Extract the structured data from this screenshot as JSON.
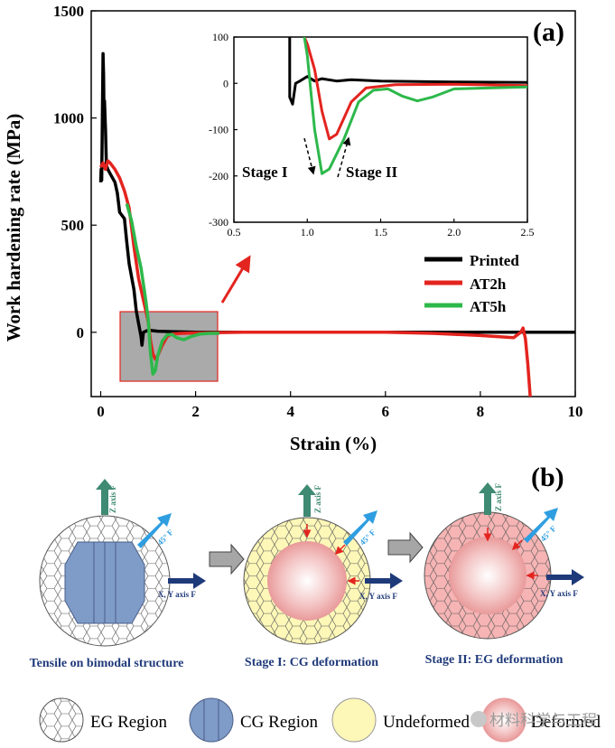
{
  "figure": {
    "panel_a_label": "(a)",
    "panel_b_label": "(b)",
    "watermark": "材料科学与工程"
  },
  "chart_data": [
    {
      "type": "line",
      "name": "main",
      "title": "",
      "xlabel": "Strain (%)",
      "ylabel": "Work hardening rate (MPa)",
      "xlim": [
        -0.2,
        10
      ],
      "ylim": [
        -300,
        1500
      ],
      "xticks": [
        0,
        2,
        4,
        6,
        8,
        10
      ],
      "yticks": [
        0,
        500,
        1000,
        1500
      ],
      "legend": {
        "position": "right-middle",
        "entries": [
          "Printed",
          "AT2h",
          "AT5h"
        ]
      },
      "series": [
        {
          "name": "Printed",
          "color": "#000000",
          "points": [
            [
              0.0,
              700
            ],
            [
              0.01,
              760
            ],
            [
              0.02,
              710
            ],
            [
              0.03,
              900
            ],
            [
              0.04,
              1100
            ],
            [
              0.05,
              1300
            ],
            [
              0.06,
              1200
            ],
            [
              0.07,
              1000
            ],
            [
              0.08,
              1080
            ],
            [
              0.1,
              950
            ],
            [
              0.12,
              780
            ],
            [
              0.15,
              760
            ],
            [
              0.2,
              740
            ],
            [
              0.3,
              700
            ],
            [
              0.35,
              650
            ],
            [
              0.4,
              560
            ],
            [
              0.5,
              530
            ],
            [
              0.55,
              420
            ],
            [
              0.6,
              320
            ],
            [
              0.7,
              200
            ],
            [
              0.75,
              100
            ],
            [
              0.8,
              40
            ],
            [
              0.85,
              -20
            ],
            [
              0.87,
              -60
            ],
            [
              0.9,
              0
            ],
            [
              1.0,
              10
            ],
            [
              1.2,
              5
            ],
            [
              1.5,
              3
            ],
            [
              2.0,
              0
            ],
            [
              3.0,
              0
            ],
            [
              4.0,
              0
            ],
            [
              5.0,
              0
            ],
            [
              6.0,
              0
            ],
            [
              7.0,
              0
            ],
            [
              8.0,
              0
            ],
            [
              9.0,
              0
            ],
            [
              10.0,
              0
            ]
          ]
        },
        {
          "name": "AT2h",
          "color": "#e3241f",
          "points": [
            [
              0.0,
              770
            ],
            [
              0.05,
              790
            ],
            [
              0.1,
              760
            ],
            [
              0.15,
              800
            ],
            [
              0.2,
              790
            ],
            [
              0.3,
              760
            ],
            [
              0.4,
              720
            ],
            [
              0.5,
              660
            ],
            [
              0.6,
              580
            ],
            [
              0.7,
              400
            ],
            [
              0.8,
              250
            ],
            [
              0.9,
              150
            ],
            [
              1.0,
              50
            ],
            [
              1.05,
              -40
            ],
            [
              1.1,
              -100
            ],
            [
              1.15,
              -125
            ],
            [
              1.2,
              -110
            ],
            [
              1.3,
              -60
            ],
            [
              1.4,
              -20
            ],
            [
              1.5,
              -8
            ],
            [
              1.7,
              -5
            ],
            [
              2.0,
              -3
            ],
            [
              3.0,
              0
            ],
            [
              4.0,
              0
            ],
            [
              5.0,
              0
            ],
            [
              6.0,
              0
            ],
            [
              7.0,
              -5
            ],
            [
              8.0,
              -15
            ],
            [
              8.7,
              -25
            ],
            [
              8.85,
              0
            ],
            [
              8.9,
              20
            ],
            [
              8.95,
              -30
            ],
            [
              9.0,
              -150
            ],
            [
              9.05,
              -300
            ]
          ]
        },
        {
          "name": "AT5h",
          "color": "#2db84b",
          "points": [
            [
              0.55,
              600
            ],
            [
              0.65,
              520
            ],
            [
              0.75,
              400
            ],
            [
              0.85,
              300
            ],
            [
              0.95,
              150
            ],
            [
              1.0,
              60
            ],
            [
              1.05,
              -100
            ],
            [
              1.1,
              -195
            ],
            [
              1.15,
              -180
            ],
            [
              1.2,
              -110
            ],
            [
              1.3,
              -40
            ],
            [
              1.4,
              -12
            ],
            [
              1.5,
              -10
            ],
            [
              1.6,
              -25
            ],
            [
              1.75,
              -35
            ],
            [
              1.9,
              -20
            ],
            [
              2.1,
              -8
            ],
            [
              2.3,
              -5
            ],
            [
              2.5,
              -5
            ]
          ]
        }
      ]
    },
    {
      "type": "line",
      "name": "inset",
      "title": "",
      "xlabel": "",
      "ylabel": "",
      "xlim": [
        0.5,
        2.5
      ],
      "ylim": [
        -300,
        100
      ],
      "xticks": [
        0.5,
        1.0,
        1.5,
        2.0,
        2.5
      ],
      "yticks": [
        -300,
        -200,
        -100,
        0,
        100
      ],
      "annotations": [
        "Stage I",
        "Stage II"
      ],
      "series": [
        {
          "name": "Printed",
          "color": "#000000",
          "points": [
            [
              0.88,
              100
            ],
            [
              0.88,
              -30
            ],
            [
              0.9,
              -45
            ],
            [
              0.92,
              0
            ],
            [
              0.95,
              5
            ],
            [
              1.0,
              15
            ],
            [
              1.05,
              5
            ],
            [
              1.1,
              10
            ],
            [
              1.2,
              5
            ],
            [
              1.3,
              8
            ],
            [
              1.5,
              5
            ],
            [
              2.0,
              3
            ],
            [
              2.5,
              2
            ]
          ]
        },
        {
          "name": "AT2h",
          "color": "#e3241f",
          "points": [
            [
              0.98,
              100
            ],
            [
              1.0,
              85
            ],
            [
              1.05,
              30
            ],
            [
              1.1,
              -60
            ],
            [
              1.15,
              -120
            ],
            [
              1.2,
              -110
            ],
            [
              1.3,
              -40
            ],
            [
              1.4,
              -10
            ],
            [
              1.6,
              -3
            ],
            [
              2.0,
              -2
            ],
            [
              2.5,
              -5
            ]
          ]
        },
        {
          "name": "AT5h",
          "color": "#2db84b",
          "points": [
            [
              0.98,
              100
            ],
            [
              1.0,
              60
            ],
            [
              1.05,
              -100
            ],
            [
              1.1,
              -195
            ],
            [
              1.15,
              -185
            ],
            [
              1.25,
              -120
            ],
            [
              1.35,
              -40
            ],
            [
              1.45,
              -15
            ],
            [
              1.55,
              -12
            ],
            [
              1.65,
              -28
            ],
            [
              1.75,
              -38
            ],
            [
              1.85,
              -30
            ],
            [
              2.0,
              -12
            ],
            [
              2.5,
              -8
            ]
          ]
        }
      ]
    }
  ],
  "schematic": {
    "stages": [
      {
        "caption": "Tensile on bimodal structure",
        "z_label": "Z axis F",
        "diag_label": "45°  F",
        "xy_label": "X, Y axis F"
      },
      {
        "caption": "Stage I: CG deformation",
        "z_label": "Z axis F",
        "diag_label": "45°  F",
        "xy_label": "X, Y axis F"
      },
      {
        "caption": "Stage II: EG deformation",
        "z_label": "Z axis F",
        "diag_label": "45°  F",
        "xy_label": "X, Y axis F"
      }
    ],
    "legend": [
      {
        "label": "EG Region"
      },
      {
        "label": "CG Region"
      },
      {
        "label": "Undeformed"
      },
      {
        "label": "Deformed"
      }
    ]
  },
  "colors": {
    "printed": "#000000",
    "at2h": "#e3241f",
    "at5h": "#2db84b",
    "cg_blue": "#7f9bc7",
    "undeformed_yellow": "#fdf7b8",
    "deformed_pink": "#f6b4b4",
    "z_arrow": "#3e8a72",
    "diag_arrow": "#2e9ee0",
    "xy_arrow": "#1f3a7a",
    "process_arrow": "#a6a6a6",
    "stage_arrow": "#e3241f"
  }
}
